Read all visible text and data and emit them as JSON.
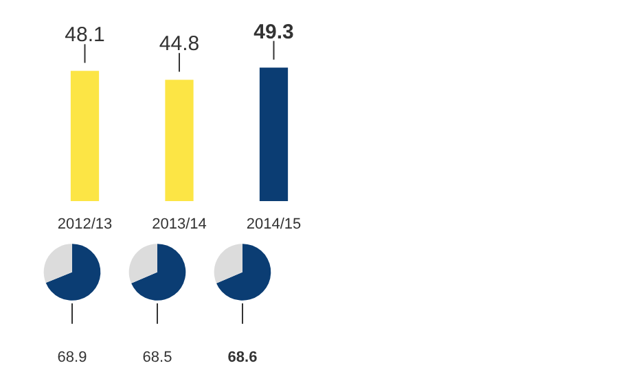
{
  "chart_data": [
    {
      "type": "bar",
      "categories": [
        "2012/13",
        "2013/14",
        "2014/15"
      ],
      "values": [
        48.1,
        44.8,
        49.3
      ],
      "colors": [
        "#fce545",
        "#fce545",
        "#0b3d73"
      ],
      "data_labels": true,
      "grid": false
    },
    {
      "type": "pie",
      "categories": [
        null,
        null
      ],
      "values": [
        68.9,
        31.1
      ],
      "colors": [
        "#0b3d73",
        "#dcdcdc"
      ],
      "value_labels": [
        "68.9",
        null
      ]
    },
    {
      "type": "pie",
      "categories": [
        null,
        null
      ],
      "values": [
        68.5,
        31.5
      ],
      "colors": [
        "#0b3d73",
        "#dcdcdc"
      ],
      "value_labels": [
        "68.5",
        null
      ]
    },
    {
      "type": "pie",
      "categories": [
        null,
        null
      ],
      "values": [
        68.6,
        31.4
      ],
      "colors": [
        "#0b3d73",
        "#dcdcdc"
      ],
      "value_labels": [
        "68.6",
        null
      ]
    }
  ]
}
